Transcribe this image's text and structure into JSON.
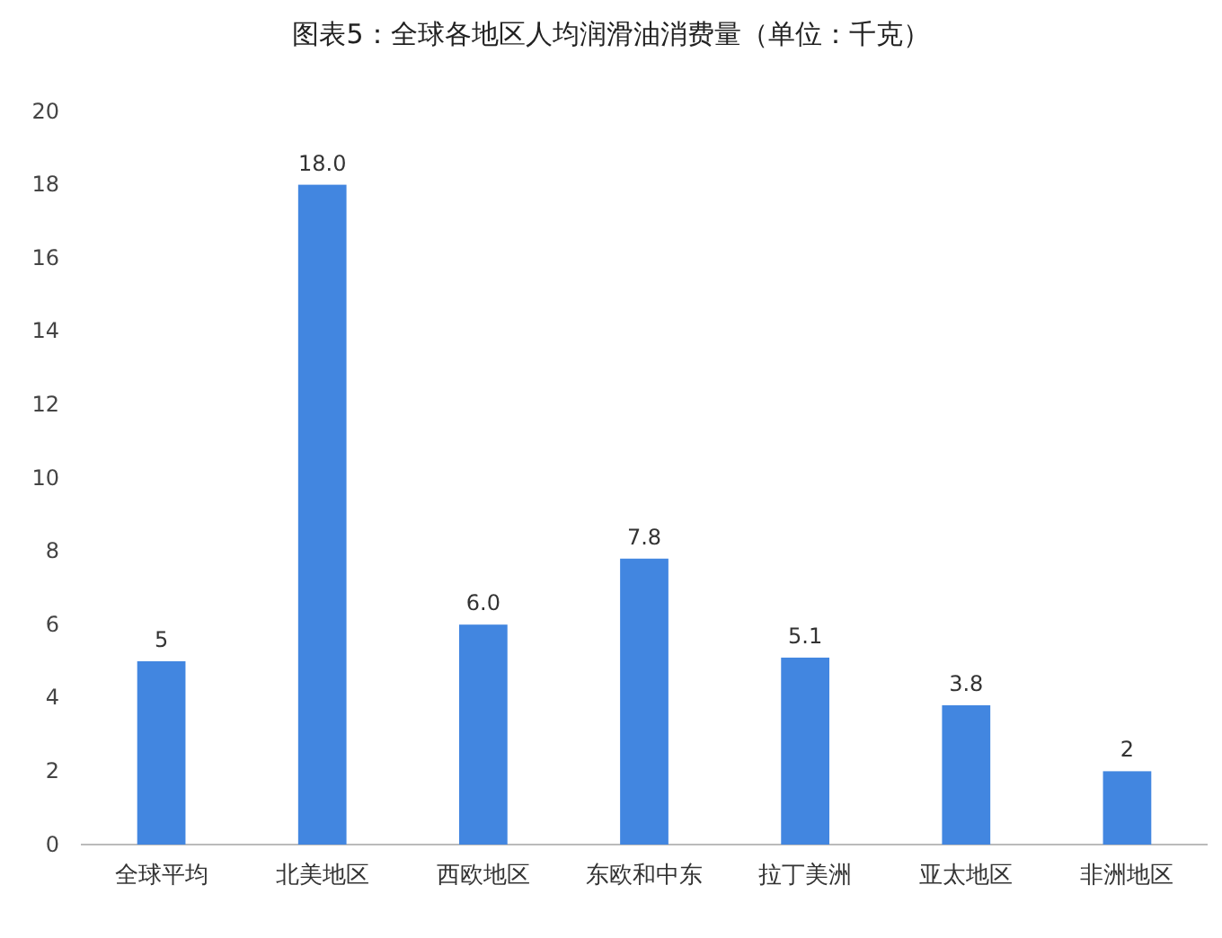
{
  "chart_data": {
    "type": "bar",
    "title": "图表5：全球各地区人均润滑油消费量（单位：千克）",
    "categories": [
      "全球平均",
      "北美地区",
      "西欧地区",
      "东欧和中东",
      "拉丁美洲",
      "亚太地区",
      "非洲地区"
    ],
    "values": [
      5,
      18.0,
      6.0,
      7.8,
      5.1,
      3.8,
      2
    ],
    "value_labels": [
      "5",
      "18.0",
      "6.0",
      "7.8",
      "5.1",
      "3.8",
      "2"
    ],
    "color": "#4286e0",
    "ylim": [
      0,
      20
    ],
    "yticks": [
      0,
      2,
      4,
      6,
      8,
      10,
      12,
      14,
      16,
      18,
      20
    ],
    "grid": false
  }
}
